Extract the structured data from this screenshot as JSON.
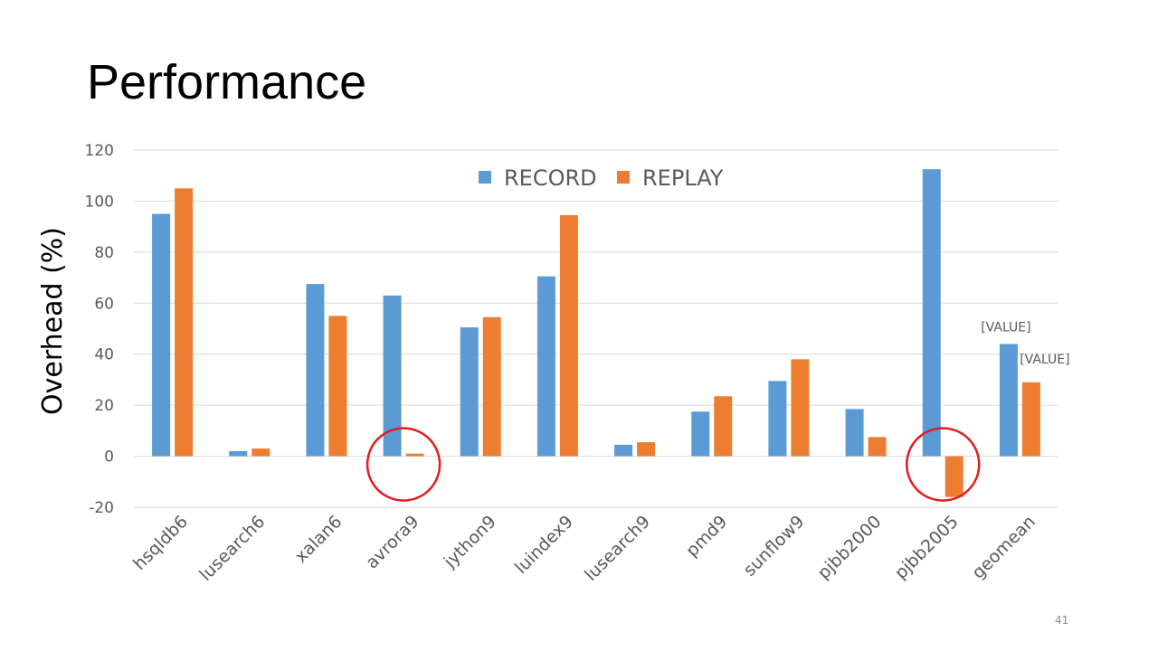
{
  "slide": {
    "title": "Performance",
    "page_number": "41"
  },
  "colors": {
    "record": "#5b9bd5",
    "replay": "#ed7d31",
    "grid": "#d9d9d9",
    "tick_text": "#595959",
    "highlight_circle": "#e31a1c"
  },
  "chart_data": {
    "type": "bar",
    "ylabel": "Overhead (%)",
    "xlabel": "",
    "ylim": [
      -20,
      120
    ],
    "yticks": [
      -20,
      0,
      20,
      40,
      60,
      80,
      100,
      120
    ],
    "grid": true,
    "legend_position": "top",
    "categories": [
      "hsqldb6",
      "lusearch6",
      "xalan6",
      "avrora9",
      "jython9",
      "luindex9",
      "lusearch9",
      "pmd9",
      "sunflow9",
      "pjbb2000",
      "pjbb2005",
      "geomean"
    ],
    "series": [
      {
        "name": "RECORD",
        "values": [
          95,
          2,
          67.5,
          63,
          50.5,
          70.5,
          4.5,
          17.5,
          29.5,
          18.5,
          112.5,
          44
        ]
      },
      {
        "name": "REPLAY",
        "values": [
          105,
          3,
          55,
          1,
          54.5,
          94.5,
          5.5,
          23.5,
          38,
          7.5,
          -16,
          29
        ]
      }
    ],
    "data_labels": [
      {
        "text": "[VALUE]",
        "category": "geomean",
        "series": "RECORD"
      },
      {
        "text": "[VALUE]",
        "category": "geomean",
        "series": "REPLAY"
      }
    ],
    "highlights": [
      "avrora9",
      "pjbb2005"
    ]
  }
}
